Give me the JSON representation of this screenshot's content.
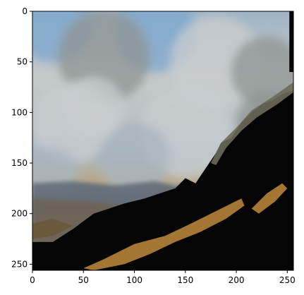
{
  "chart_data": {
    "type": "heatmap",
    "image_size": [
      256,
      256
    ],
    "xlim": [
      0,
      256
    ],
    "ylim": [
      256,
      0
    ],
    "x_ticks": [
      0,
      50,
      100,
      150,
      200,
      250
    ],
    "y_ticks": [
      0,
      50,
      100,
      150,
      200,
      250
    ],
    "title": "",
    "xlabel": "",
    "ylabel": "",
    "grid": false,
    "palette": {
      "sky": "#7ea8cf",
      "cloud": "#c9cdd0",
      "cloud_dark": "#8f9493",
      "haze": "#a8b5bd",
      "mountain_far": "#5e6a78",
      "ridge": "#6b6a5a",
      "ochre": "#a37634",
      "black": "#050505"
    }
  }
}
